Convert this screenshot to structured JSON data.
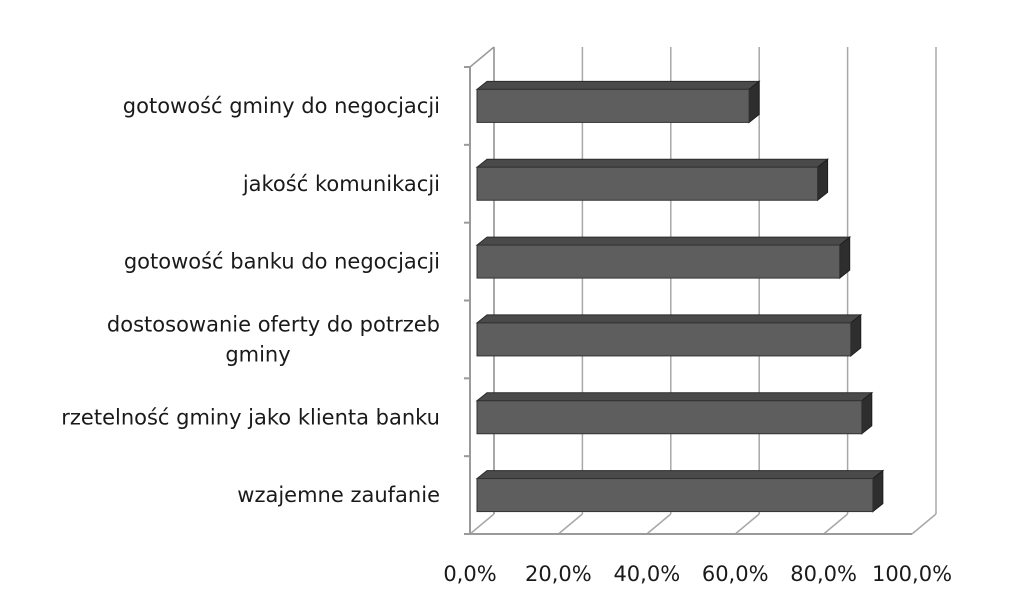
{
  "chart_data": {
    "type": "bar",
    "orientation": "horizontal",
    "style": "3d",
    "title": "",
    "xlabel": "",
    "ylabel": "",
    "categories": [
      [
        "gotowość gminy do negocjacji"
      ],
      [
        "jakość komunikacji"
      ],
      [
        "gotowość banku do negocjacji"
      ],
      [
        "dostosowanie oferty do potrzeb",
        "gminy"
      ],
      [
        "rzetelność gminy jako klienta banku"
      ],
      [
        "wzajemne zaufanie"
      ]
    ],
    "values": [
      64.5,
      80.0,
      85.0,
      87.5,
      90.0,
      92.5
    ],
    "xlim": [
      0,
      100
    ],
    "ticks": [
      "0,0%",
      "20,0%",
      "40,0%",
      "60,0%",
      "80,0%",
      "100,0%"
    ],
    "grid": true,
    "legend": "none",
    "colors": {
      "bar_front": "#5e5e5e",
      "bar_top": "#4a4a4a",
      "bar_side": "#2e2e2e",
      "axis": "#9a9a9a",
      "grid": "#a8a8a8"
    }
  }
}
